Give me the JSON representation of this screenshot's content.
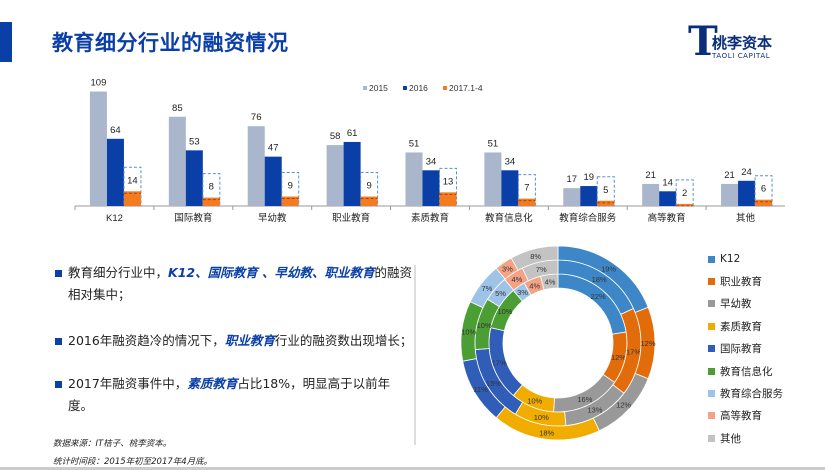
{
  "header": {
    "title": "教育细分行业的融资情况",
    "logo_cn": "桃李资本",
    "logo_en": "TAOLI CAPITAL",
    "logo_mark": "T"
  },
  "chart_data": [
    {
      "type": "bar",
      "categories": [
        "K12",
        "国际教育",
        "早幼教",
        "职业教育",
        "素质教育",
        "教育信息化",
        "教育综合服务",
        "高等教育",
        "其他"
      ],
      "series": [
        {
          "name": "2015",
          "color": "#aab6cb",
          "values": [
            109,
            85,
            76,
            58,
            51,
            51,
            17,
            21,
            21
          ]
        },
        {
          "name": "2016",
          "color": "#0a3fa8",
          "values": [
            64,
            53,
            47,
            61,
            34,
            34,
            19,
            14,
            24
          ]
        },
        {
          "name": "2017.1-4",
          "color": "#f47b20",
          "values": [
            14,
            8,
            9,
            9,
            13,
            7,
            5,
            2,
            6
          ]
        }
      ],
      "legend": "top-right",
      "ylim": [
        0,
        115
      ],
      "highlight": "2017.1-4 values outlined with dashed box"
    },
    {
      "type": "pie",
      "variant": "multi-ring donut",
      "categories": [
        "K12",
        "职业教育",
        "早幼教",
        "素质教育",
        "国际教育",
        "教育信息化",
        "教育综合服务",
        "高等教育",
        "其他"
      ],
      "colors": [
        "#3d87c8",
        "#e36c0a",
        "#999999",
        "#f0ad00",
        "#2f5db8",
        "#4a9e34",
        "#9dc3e6",
        "#f4a184",
        "#c3c3c3"
      ],
      "rings": [
        {
          "ring": "inner",
          "values": [
            22,
            12,
            16,
            10,
            17,
            10,
            3,
            4,
            4
          ]
        },
        {
          "ring": "middle",
          "values": [
            18,
            17,
            13,
            10,
            15,
            10,
            5,
            4,
            7
          ]
        },
        {
          "ring": "outer",
          "values": [
            19,
            12,
            12,
            18,
            11,
            10,
            7,
            3,
            8
          ]
        }
      ],
      "value_suffix": "%",
      "legend": "right"
    }
  ],
  "bullets": [
    {
      "pre": "教育细分行业中，",
      "hl": "K12、国际教育 、早幼教、职业教育",
      "post": "的融资相对集中；"
    },
    {
      "pre": "2016年融资趋冷的情况下，",
      "hl": "职业教育",
      "post": "行业的融资数出现增长；"
    },
    {
      "pre": "2017年融资事件中，",
      "hl": "素质教育",
      "post": "占比18%，明显高于以前年度。"
    }
  ],
  "notes": {
    "source": "数据来源：IT桔子、桃李资本。",
    "period": "统计时间段：2015年初至2017年4月底。"
  }
}
